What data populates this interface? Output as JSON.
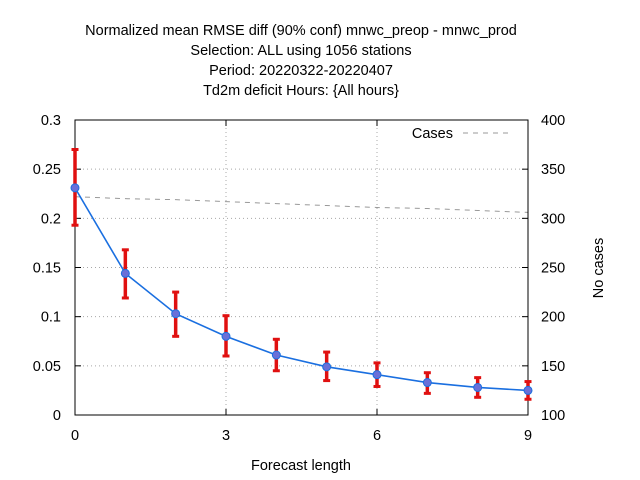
{
  "chart_data": {
    "type": "line",
    "title_lines": [
      "Normalized mean RMSE diff (90% conf) mnwc_preop - mnwc_prod",
      "Selection: ALL using  1056 stations",
      "Period: 20220322-20220407",
      "Td2m deficit   Hours: {All hours}"
    ],
    "xlabel": "Forecast length",
    "ylabel": "",
    "y2label": "No cases",
    "xlim": [
      0,
      9
    ],
    "ylim": [
      0,
      0.3
    ],
    "y2lim": [
      100,
      400
    ],
    "x_ticks": [
      0,
      3,
      6,
      9
    ],
    "y_ticks": [
      0,
      0.05,
      0.1,
      0.15,
      0.2,
      0.25,
      0.3
    ],
    "y_tick_labels": [
      "0",
      "0.05",
      "0.1",
      "0.15",
      "0.2",
      "0.25",
      "0.3"
    ],
    "y2_ticks": [
      100,
      150,
      200,
      250,
      300,
      350,
      400
    ],
    "grid": true,
    "legend_position": "top-right",
    "x": [
      0,
      1,
      2,
      3,
      4,
      5,
      6,
      7,
      8,
      9
    ],
    "series": [
      {
        "values": [
          0.231,
          0.144,
          0.103,
          0.08,
          0.061,
          0.049,
          0.041,
          0.033,
          0.028,
          0.025
        ],
        "err_low": [
          0.193,
          0.119,
          0.08,
          0.06,
          0.045,
          0.035,
          0.029,
          0.022,
          0.018,
          0.016
        ],
        "err_high": [
          0.27,
          0.168,
          0.125,
          0.101,
          0.077,
          0.064,
          0.053,
          0.043,
          0.038,
          0.034
        ],
        "color": "#1a6fe0",
        "marker_color": "#6a6fd8",
        "errorbar_color": "#e01010",
        "axis": "left"
      },
      {
        "name": "Cases",
        "values": [
          322,
          320,
          319,
          317,
          315,
          313,
          311,
          310,
          308,
          306
        ],
        "color": "#999999",
        "style": "dashed",
        "axis": "right"
      }
    ]
  }
}
